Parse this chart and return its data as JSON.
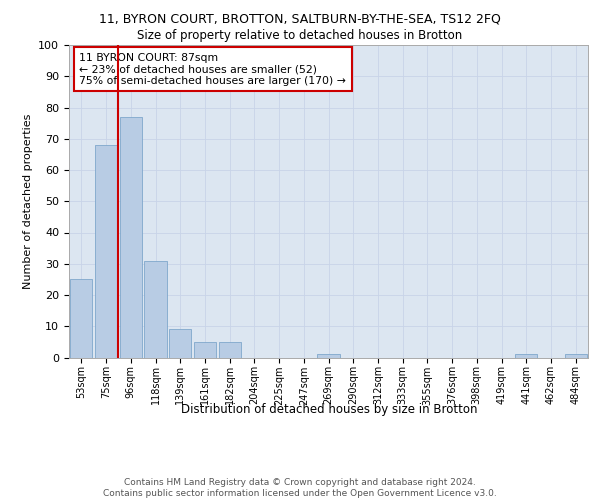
{
  "title_line1": "11, BYRON COURT, BROTTON, SALTBURN-BY-THE-SEA, TS12 2FQ",
  "title_line2": "Size of property relative to detached houses in Brotton",
  "xlabel": "Distribution of detached houses by size in Brotton",
  "ylabel": "Number of detached properties",
  "categories": [
    "53sqm",
    "75sqm",
    "96sqm",
    "118sqm",
    "139sqm",
    "161sqm",
    "182sqm",
    "204sqm",
    "225sqm",
    "247sqm",
    "269sqm",
    "290sqm",
    "312sqm",
    "333sqm",
    "355sqm",
    "376sqm",
    "398sqm",
    "419sqm",
    "441sqm",
    "462sqm",
    "484sqm"
  ],
  "values": [
    25,
    68,
    77,
    31,
    9,
    5,
    5,
    0,
    0,
    0,
    1,
    0,
    0,
    0,
    0,
    0,
    0,
    0,
    1,
    0,
    1
  ],
  "bar_color": "#b8cce4",
  "bar_edge_color": "#7fa7cc",
  "vline_color": "#cc0000",
  "annotation_text": "11 BYRON COURT: 87sqm\n← 23% of detached houses are smaller (52)\n75% of semi-detached houses are larger (170) →",
  "annotation_box_color": "#ffffff",
  "annotation_box_edge": "#cc0000",
  "footnote": "Contains HM Land Registry data © Crown copyright and database right 2024.\nContains public sector information licensed under the Open Government Licence v3.0.",
  "ylim": [
    0,
    100
  ],
  "grid_color": "#c8d4e8",
  "bg_color": "#dce6f1",
  "title1_fontsize": 9,
  "title2_fontsize": 8.5,
  "ylabel_fontsize": 8,
  "ytick_fontsize": 8,
  "xtick_fontsize": 7,
  "xlabel_fontsize": 8.5,
  "footnote_fontsize": 6.5
}
